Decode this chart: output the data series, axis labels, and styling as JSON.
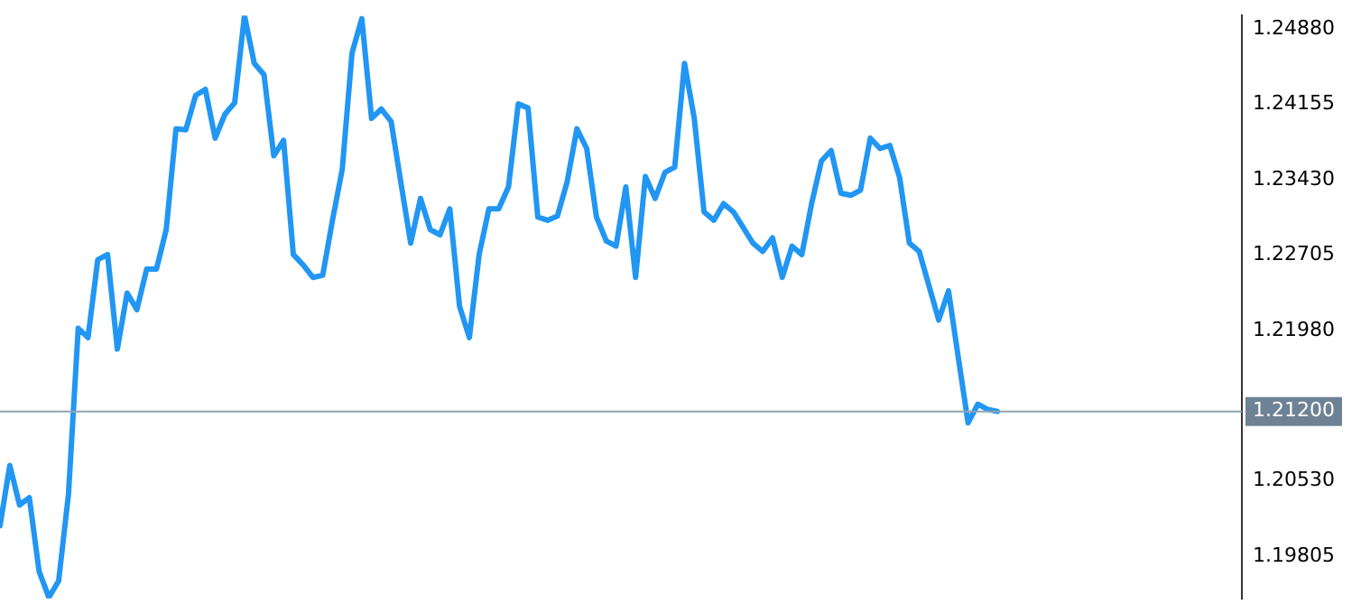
{
  "chart_data": {
    "type": "line",
    "categories": [
      null,
      null,
      null,
      null,
      null,
      null,
      null,
      null,
      null,
      null,
      null,
      null,
      null,
      null,
      null,
      null,
      null,
      null,
      null,
      null,
      null,
      null,
      null,
      null,
      null,
      null,
      null,
      null,
      null,
      null,
      null,
      null,
      null,
      null,
      null,
      null,
      null,
      null,
      null,
      null,
      null,
      null,
      null,
      null,
      null,
      null,
      null,
      null,
      null,
      null,
      null,
      null,
      null,
      null,
      null,
      null,
      null,
      null,
      null,
      null,
      null,
      null,
      null,
      null,
      null,
      null,
      null,
      null,
      null,
      null,
      null,
      null,
      null,
      null,
      null,
      null,
      null,
      null,
      null,
      null,
      null,
      null,
      null,
      null,
      null,
      null,
      null,
      null,
      null,
      null,
      null,
      null,
      null,
      null,
      null,
      null,
      null,
      null,
      null,
      null,
      null,
      null,
      null,
      null,
      null,
      null,
      null,
      null,
      null,
      null,
      null,
      null,
      null,
      null,
      null,
      null,
      null,
      null,
      null,
      null,
      null,
      null,
      null,
      null,
      null,
      null,
      null,
      null
    ],
    "series": [
      {
        "color": "#2196f3",
        "values": [
          1.201,
          1.2068,
          1.203,
          1.2037,
          1.1966,
          1.1941,
          1.1957,
          1.204,
          1.22,
          1.2191,
          1.2266,
          1.2271,
          1.218,
          1.2234,
          1.2218,
          1.2257,
          1.2257,
          1.2295,
          1.2392,
          1.2391,
          1.2424,
          1.243,
          1.2383,
          1.2406,
          1.2417,
          1.2501,
          1.2455,
          1.2444,
          1.2366,
          1.2381,
          1.2271,
          1.2261,
          1.2249,
          1.2251,
          1.2304,
          1.2353,
          1.2465,
          1.2498,
          1.2402,
          1.2411,
          1.2399,
          1.234,
          1.2282,
          1.2325,
          1.2295,
          1.229,
          1.2315,
          1.2221,
          1.2191,
          1.2271,
          1.2315,
          1.2315,
          1.2336,
          1.2416,
          1.2412,
          1.2307,
          1.2304,
          1.2308,
          1.2341,
          1.2392,
          1.2373,
          1.2307,
          1.2284,
          1.2279,
          1.2336,
          1.2249,
          1.2346,
          1.2325,
          1.235,
          1.2355,
          1.2455,
          1.2402,
          1.2312,
          1.2304,
          1.232,
          1.2312,
          1.2297,
          1.2282,
          1.2274,
          1.2287,
          1.2249,
          1.2279,
          1.2271,
          1.232,
          1.2361,
          1.2371,
          1.233,
          1.2328,
          1.2333,
          1.2383,
          1.2373,
          1.2376,
          1.2345,
          1.2282,
          1.2274,
          1.2241,
          1.2208,
          1.2236,
          1.2172,
          1.2109,
          1.2127,
          1.2122,
          1.212,
          null,
          null,
          null,
          null,
          null,
          null,
          null,
          null,
          null,
          null,
          null,
          null,
          null,
          null,
          null,
          null,
          null,
          null,
          null,
          null,
          null,
          null,
          null,
          null,
          null
        ]
      }
    ],
    "ylim": [
      1.194,
      1.2501
    ],
    "yticks": [
      {
        "value": 1.2488,
        "label": "1.24880"
      },
      1.24155,
      {
        "value": 1.2343,
        "label": "1.23430"
      },
      1.22705,
      {
        "value": 1.2198,
        "label": "1.21980"
      },
      {
        "value": 1.2053,
        "label": "1.20530"
      },
      1.19805
    ],
    "ref_lines": [
      {
        "axis": "y",
        "value": 1.212,
        "label": "1.21200",
        "color": "#8fa3b0"
      }
    ],
    "tick_labels": "y",
    "grid": false,
    "legend": false,
    "marker": "none",
    "line_style": "solid"
  }
}
